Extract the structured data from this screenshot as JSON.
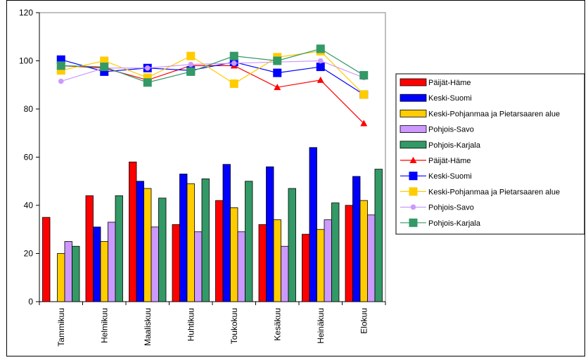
{
  "chart_data": {
    "type": "bar",
    "title": "",
    "xlabel": "",
    "ylabel": "",
    "ylim": [
      0,
      120
    ],
    "yticks": [
      0,
      20,
      40,
      60,
      80,
      100,
      120
    ],
    "grid": false,
    "legend_position": "right",
    "categories": [
      "Tammikuu",
      "Helmikuu",
      "Maaliskuu",
      "Huhtikuu",
      "Toukokuu",
      "Kesäkuu",
      "Heinäkuu",
      "Elokuu"
    ],
    "bar_series": [
      {
        "name": "Päijät-Häme",
        "color": "#ff0000",
        "values": [
          35,
          44,
          58,
          32,
          42,
          32,
          28,
          40
        ]
      },
      {
        "name": "Keski-Suomi",
        "color": "#0000ff",
        "values": [
          null,
          31,
          50,
          53,
          57,
          56,
          64,
          52
        ]
      },
      {
        "name": "Keski-Pohjanmaa ja Pietarsaaren alue",
        "color": "#ffcc00",
        "values": [
          20,
          25,
          47,
          49,
          39,
          34,
          30,
          42
        ]
      },
      {
        "name": "Pohjois-Savo",
        "color": "#cc99ff",
        "values": [
          25,
          33,
          31,
          29,
          29,
          23,
          34,
          36
        ]
      },
      {
        "name": "Pohjois-Karjala",
        "color": "#339966",
        "values": [
          23,
          44,
          43,
          51,
          50,
          47,
          41,
          55
        ]
      }
    ],
    "line_series": [
      {
        "name": "Päijät-Häme",
        "color": "#ff0000",
        "marker": "triangle",
        "values": [
          98,
          97,
          92,
          98,
          98,
          89,
          92,
          74
        ]
      },
      {
        "name": "Keski-Suomi",
        "color": "#0000ff",
        "marker": "square",
        "values": [
          100.5,
          95.5,
          97,
          96,
          99.5,
          95,
          97.5,
          86
        ]
      },
      {
        "name": "Keski-Pohjanmaa ja Pietarsaaren alue",
        "color": "#ffcc00",
        "marker": "square",
        "values": [
          96,
          100,
          93,
          102,
          90.5,
          101.5,
          104,
          86
        ]
      },
      {
        "name": "Pohjois-Savo",
        "color": "#cc99ff",
        "marker": "circle",
        "values": [
          91.5,
          97,
          97,
          98.5,
          99,
          99.5,
          100,
          93
        ]
      },
      {
        "name": "Pohjois-Karjala",
        "color": "#339966",
        "marker": "square",
        "values": [
          98,
          97.5,
          91,
          95.5,
          102,
          100,
          105,
          94
        ]
      }
    ]
  }
}
